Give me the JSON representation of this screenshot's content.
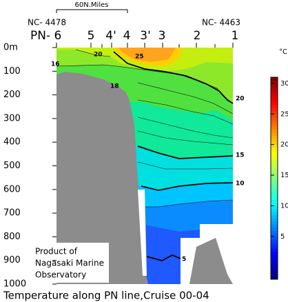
{
  "chart_data": {
    "type": "contour",
    "title": "Temperature along PN line,Cruise 00-04",
    "scale_label": "60N.Miles",
    "endpoints": [
      "NC- 4478",
      "NC- 4463"
    ],
    "stations": [
      "PN- 6",
      "5",
      "4'",
      "4",
      "3'",
      "3",
      "2",
      "1"
    ],
    "ylim": [
      0,
      1000
    ],
    "yticks": [
      {
        "value": 0,
        "label": "0m"
      },
      100,
      200,
      300,
      400,
      500,
      600,
      700,
      800,
      900,
      1000
    ],
    "colorbar": {
      "unit": "°C",
      "clim": [
        -2,
        31
      ],
      "ticks": [
        5,
        10,
        15,
        20,
        25,
        30
      ]
    },
    "contour_labels": [
      16,
      20,
      25,
      18,
      20,
      15,
      10,
      5
    ],
    "note": [
      "Product of",
      "Nagasaki Marine",
      "Observatory"
    ]
  }
}
